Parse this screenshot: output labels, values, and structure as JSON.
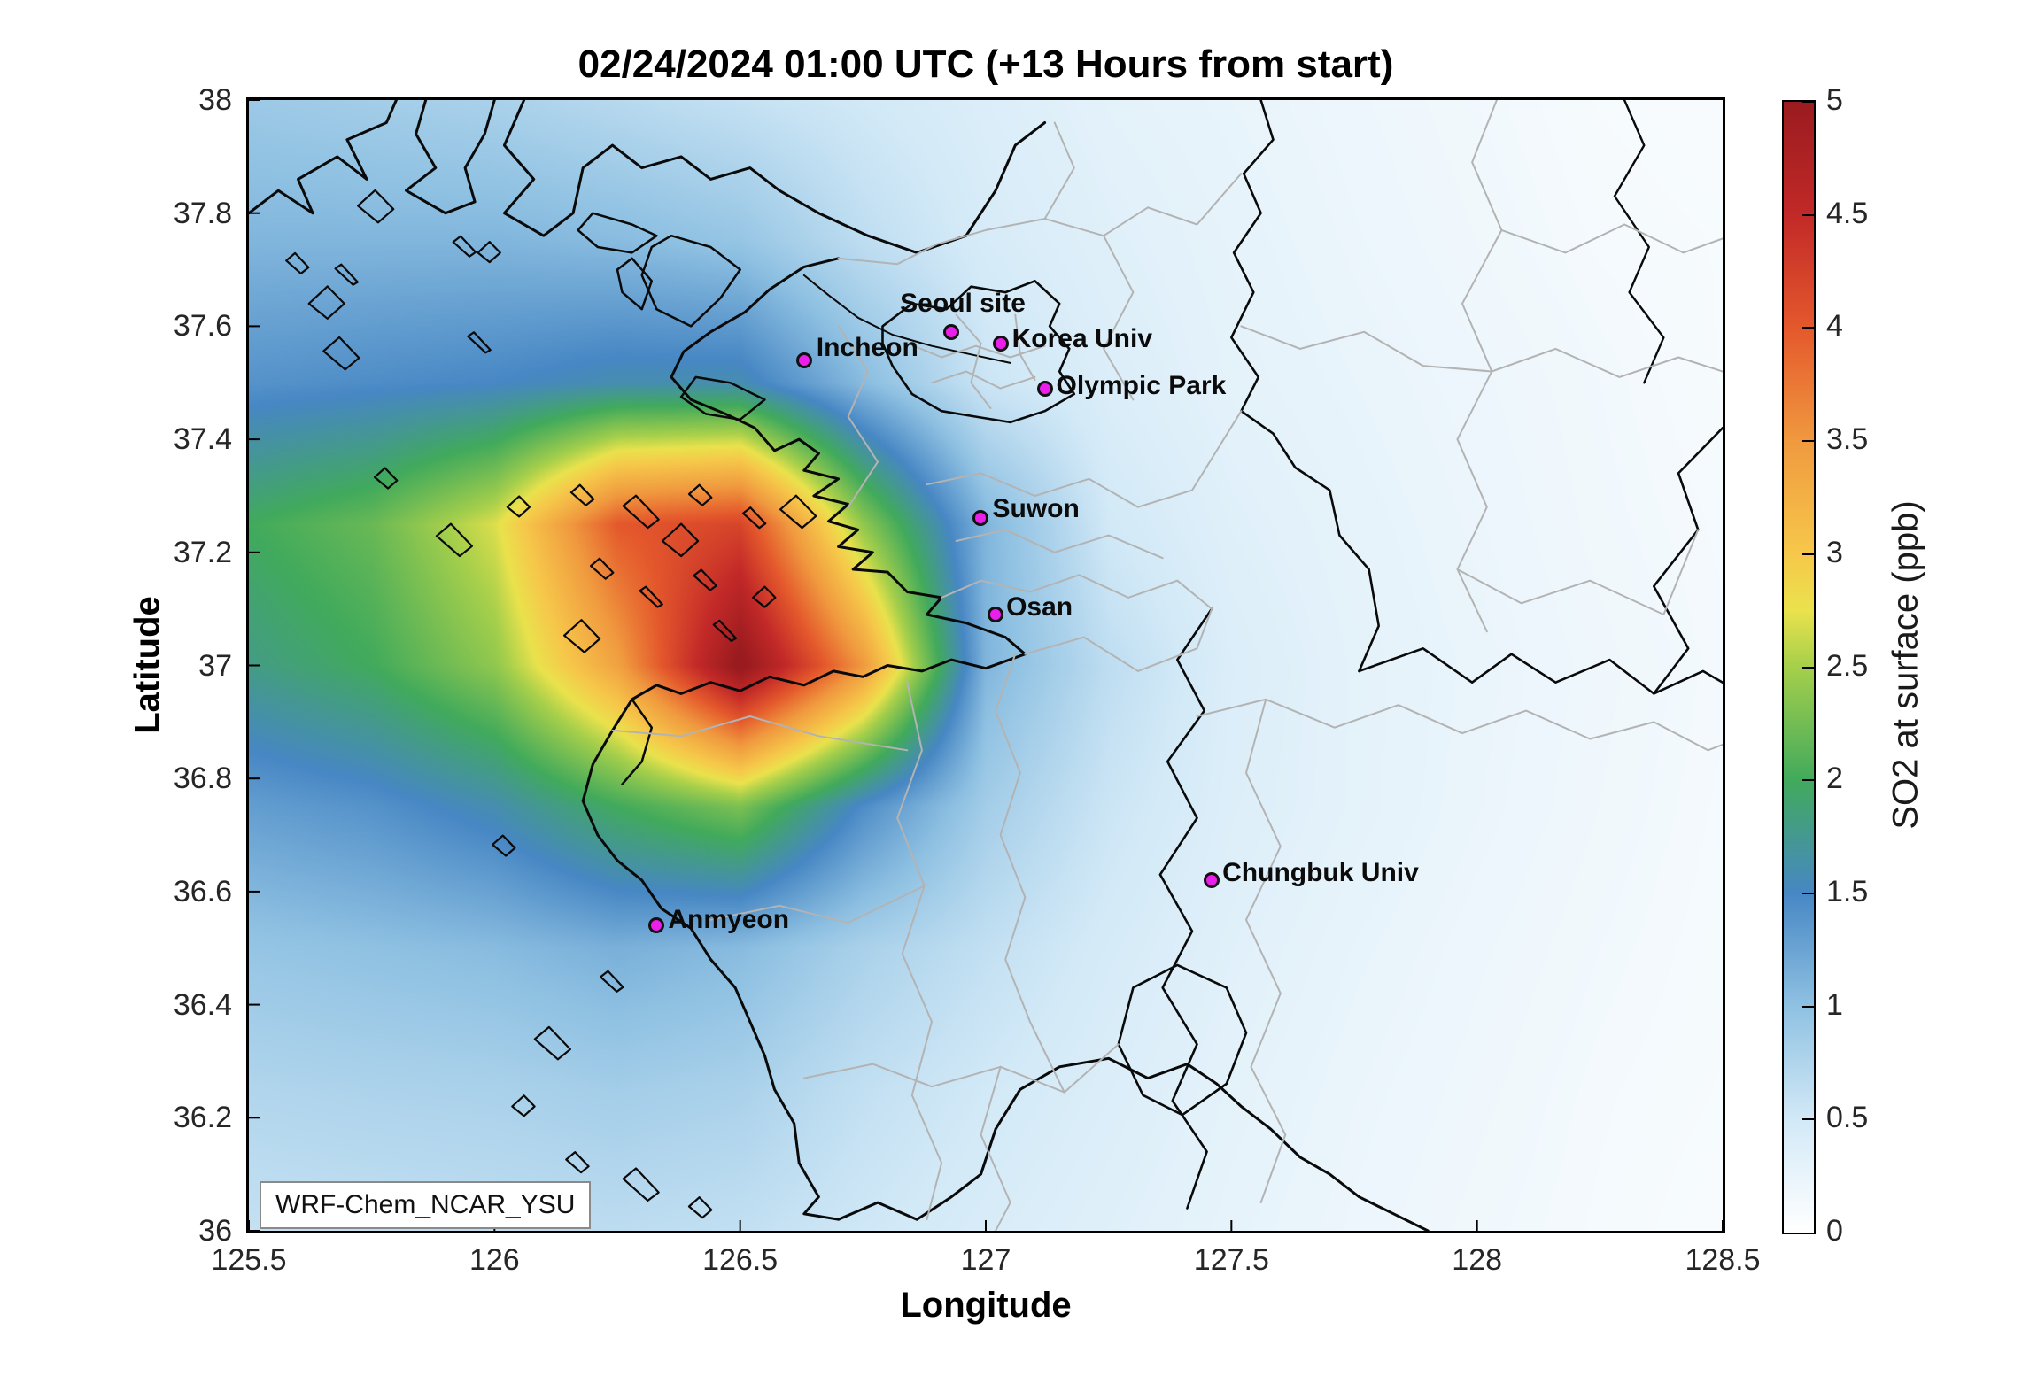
{
  "figure": {
    "title": "02/24/2024 01:00 UTC (+13 Hours from start)",
    "model_label": "WRF-Chem_NCAR_YSU"
  },
  "axes": {
    "xlabel": "Longitude",
    "ylabel": "Latitude",
    "xlim": [
      125.5,
      128.5
    ],
    "ylim": [
      36,
      38
    ],
    "xtick_values": [
      125.5,
      126,
      126.5,
      127,
      127.5,
      128,
      128.5
    ],
    "xtick_labels": [
      "125.5",
      "126",
      "126.5",
      "127",
      "127.5",
      "128",
      "128.5"
    ],
    "ytick_values": [
      36,
      36.2,
      36.4,
      36.6,
      36.8,
      37,
      37.2,
      37.4,
      37.6,
      37.8,
      38
    ],
    "ytick_labels": [
      "36",
      "36.2",
      "36.4",
      "36.6",
      "36.8",
      "37",
      "37.2",
      "37.4",
      "37.6",
      "37.8",
      "38"
    ]
  },
  "colorbar": {
    "label": "SO2 at surface (ppb)",
    "min": 0,
    "max": 5,
    "tick_values": [
      0,
      0.5,
      1,
      1.5,
      2,
      2.5,
      3,
      3.5,
      4,
      4.5,
      5
    ],
    "tick_labels": [
      "0",
      "0.5",
      "1",
      "1.5",
      "2",
      "2.5",
      "3",
      "3.5",
      "4",
      "4.5",
      "5"
    ],
    "stops": [
      [
        0,
        "#ffffff"
      ],
      [
        0.5,
        "#d2e9f7"
      ],
      [
        1,
        "#8fc1e2"
      ],
      [
        1.5,
        "#4787c4"
      ],
      [
        2,
        "#41aa5c"
      ],
      [
        2.5,
        "#a5cf4b"
      ],
      [
        2.75,
        "#eae24c"
      ],
      [
        3,
        "#f6c84a"
      ],
      [
        3.5,
        "#f0993f"
      ],
      [
        4,
        "#e4582c"
      ],
      [
        4.5,
        "#c22928"
      ],
      [
        5,
        "#9a1b1f"
      ]
    ]
  },
  "marker": {
    "color": "#ea1fea",
    "edge": "#111111"
  },
  "chart_data": {
    "type": "heatmap",
    "title": "02/24/2024 01:00 UTC (+13 Hours from start)",
    "xlabel": "Longitude",
    "ylabel": "Latitude",
    "colorbar_label": "SO2 at surface (ppb)",
    "xlim": [
      125.5,
      128.5
    ],
    "ylim": [
      36,
      38
    ],
    "zlim": [
      0,
      5
    ],
    "grid_lon": [
      125.5,
      125.75,
      126,
      126.25,
      126.5,
      126.75,
      127,
      127.25,
      127.5,
      127.75,
      128,
      128.25,
      128.5
    ],
    "grid_lat": [
      38,
      37.75,
      37.5,
      37.25,
      37,
      36.75,
      36.5,
      36.25,
      36
    ],
    "so2_ppb": [
      [
        0.9,
        0.85,
        0.8,
        0.7,
        0.6,
        0.5,
        0.4,
        0.3,
        0.25,
        0.2,
        0.15,
        0.1,
        0.08
      ],
      [
        1.1,
        1.1,
        1.1,
        1.05,
        0.95,
        0.65,
        0.45,
        0.35,
        0.28,
        0.22,
        0.17,
        0.12,
        0.1
      ],
      [
        1.4,
        1.45,
        1.5,
        1.6,
        1.6,
        1.05,
        0.55,
        0.4,
        0.3,
        0.25,
        0.2,
        0.15,
        0.1
      ],
      [
        2.0,
        2.2,
        2.7,
        4.0,
        4.2,
        2.4,
        1.1,
        0.5,
        0.35,
        0.28,
        0.22,
        0.16,
        0.12
      ],
      [
        1.8,
        2.0,
        2.4,
        3.4,
        5.1,
        3.5,
        1.1,
        0.65,
        0.4,
        0.3,
        0.24,
        0.18,
        0.13
      ],
      [
        1.3,
        1.4,
        1.6,
        2.0,
        2.3,
        1.45,
        0.85,
        0.55,
        0.38,
        0.3,
        0.23,
        0.17,
        0.12
      ],
      [
        0.95,
        1.0,
        1.05,
        1.15,
        1.05,
        0.8,
        0.62,
        0.46,
        0.34,
        0.26,
        0.2,
        0.15,
        0.11
      ],
      [
        0.75,
        0.78,
        0.8,
        0.85,
        0.8,
        0.62,
        0.5,
        0.4,
        0.3,
        0.23,
        0.18,
        0.13,
        0.1
      ],
      [
        0.6,
        0.62,
        0.64,
        0.66,
        0.62,
        0.52,
        0.43,
        0.35,
        0.27,
        0.21,
        0.16,
        0.12,
        0.08
      ]
    ],
    "plume_peak": {
      "lon": 126.45,
      "lat": 37.12,
      "value_ppb": 5
    },
    "sites": [
      {
        "name": "Incheon",
        "lon": 126.63,
        "lat": 37.54
      },
      {
        "name": "Seoul site",
        "lon": 126.93,
        "lat": 37.59
      },
      {
        "name": "Korea Univ",
        "lon": 127.03,
        "lat": 37.57
      },
      {
        "name": "Olympic Park",
        "lon": 127.12,
        "lat": 37.49
      },
      {
        "name": "Suwon",
        "lon": 126.99,
        "lat": 37.26
      },
      {
        "name": "Osan",
        "lon": 127.02,
        "lat": 37.09
      },
      {
        "name": "Anmyeon",
        "lon": 126.33,
        "lat": 36.54
      },
      {
        "name": "Chungbuk Univ",
        "lon": 127.46,
        "lat": 36.62
      }
    ]
  }
}
